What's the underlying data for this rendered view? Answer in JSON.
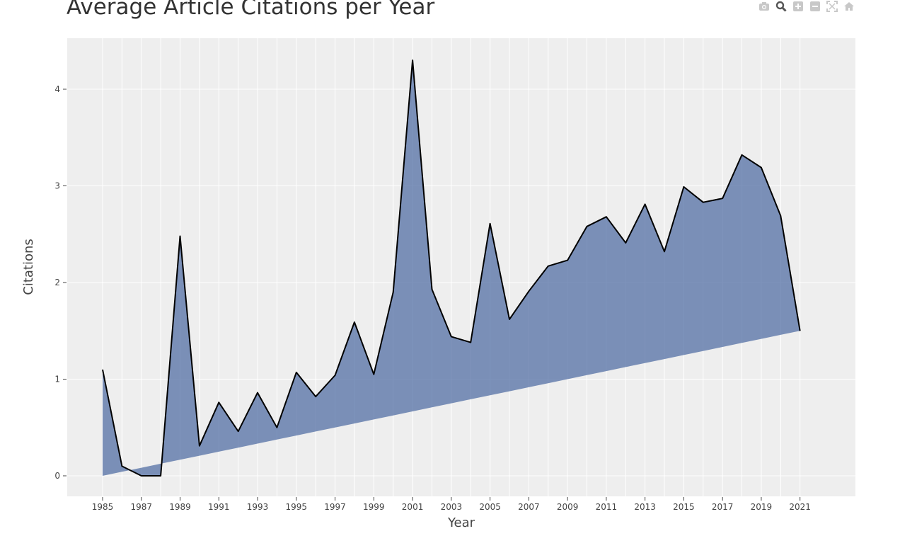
{
  "chart_data": {
    "type": "area",
    "title": "Average Article Citations per Year",
    "xlabel": "Year",
    "ylabel": "Citations",
    "xlim": [
      1983.2,
      1023.5
    ],
    "ylim": [
      -0.22,
      4.5
    ],
    "x_ticks": [
      "1985",
      "1987",
      "1989",
      "1991",
      "1993",
      "1995",
      "1997",
      "1999",
      "2001",
      "2003",
      "2005",
      "2007",
      "2009",
      "2011",
      "2013",
      "2015",
      "2017",
      "2019",
      "2021"
    ],
    "y_ticks": [
      "0",
      "1",
      "2",
      "3",
      "4"
    ],
    "grid": true,
    "fill_color": "#5a75a8",
    "line_color": "#000000",
    "background_color": "#eeeeee",
    "x": [
      1985,
      1986,
      1987,
      1988,
      1989,
      1990,
      1991,
      1992,
      1993,
      1994,
      1995,
      1996,
      1997,
      1998,
      1999,
      2000,
      2001,
      2002,
      2003,
      2004,
      2005,
      2006,
      2007,
      2008,
      2009,
      2010,
      2011,
      2012,
      2013,
      2014,
      2015,
      2016,
      2017,
      2018,
      2019,
      2020,
      2021
    ],
    "values": [
      1.1,
      0.1,
      0,
      0,
      2.48,
      0.31,
      0.76,
      0.46,
      0.86,
      0.5,
      1.07,
      0.82,
      1.04,
      1.59,
      1.05,
      1.9,
      4.3,
      1.93,
      1.44,
      1.38,
      2.61,
      1.62,
      1.91,
      2.17,
      2.23,
      2.58,
      2.68,
      2.41,
      2.81,
      2.32,
      2.99,
      2.83,
      2.87,
      3.32,
      3.19,
      2.69,
      1.5
    ],
    "fill_baseline": [
      [
        1985,
        0
      ],
      [
        2021,
        1.5
      ]
    ]
  },
  "modebar": {
    "icons": [
      "camera-icon",
      "zoom-icon",
      "zoom-in-icon",
      "zoom-out-icon",
      "autoscale-icon",
      "home-icon"
    ]
  }
}
